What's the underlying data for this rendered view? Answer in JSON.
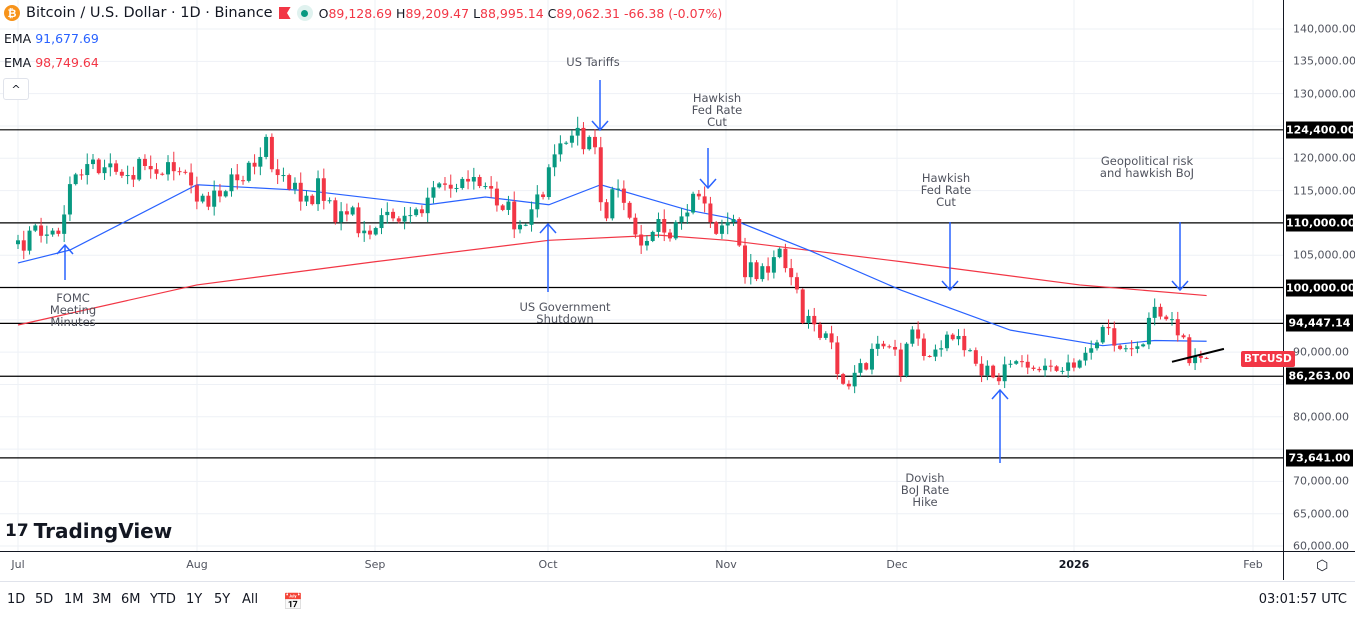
{
  "header": {
    "symbol_icon": "bitcoin-icon",
    "title": "Bitcoin / U.S. Dollar · 1D · Binance",
    "open_label": "O",
    "open": "89,128.69",
    "high_label": "H",
    "high": "89,209.47",
    "low_label": "L",
    "low": "88,995.14",
    "close_label": "C",
    "close": "89,062.31",
    "change": "-66.38 (-0.07%)"
  },
  "indicators": [
    {
      "label": "EMA",
      "value": "91,677.69",
      "color": "#2962ff"
    },
    {
      "label": "EMA",
      "value": "98,749.64",
      "color": "#f23645"
    }
  ],
  "collapse_label": "^",
  "price_axis": {
    "ticks": [
      "140,000.00",
      "135,000.00",
      "130,000.00",
      "120,000.00",
      "115,000.00",
      "105,000.00",
      "90,000.00",
      "80,000.00",
      "70,000.00",
      "65,000.00",
      "60,000.00"
    ],
    "levels": [
      "124,400.00",
      "110,000.00",
      "100,000.00",
      "94,447.14",
      "86,263.00",
      "73,641.00"
    ],
    "symbol_tag": "BTCUSD"
  },
  "time_axis": {
    "labels": [
      "Jul",
      "Aug",
      "Sep",
      "Oct",
      "Nov",
      "Dec",
      "2026",
      "Feb"
    ]
  },
  "annotations": [
    {
      "text": "FOMC\nMeeting\nMinutes"
    },
    {
      "text": "US Tariffs"
    },
    {
      "text": "Hawkish\nFed Rate\nCut"
    },
    {
      "text": "US Government\nShutdown"
    },
    {
      "text": "Hawkish\nFed Rate\nCut"
    },
    {
      "text": "Geopolitical risk\nand hawkish BoJ"
    },
    {
      "text": "Dovish\nBoJ Rate\nHike"
    }
  ],
  "chart_data": {
    "type": "candlestick",
    "start_date": "2025-07-01",
    "closes": [
      107300,
      105700,
      108800,
      109600,
      108000,
      108200,
      108800,
      108300,
      111300,
      116000,
      117500,
      117400,
      119100,
      119800,
      117700,
      118600,
      119200,
      117900,
      117300,
      117400,
      116700,
      119900,
      118800,
      118300,
      117600,
      117500,
      119400,
      118000,
      117900,
      117800,
      115800,
      113300,
      114200,
      112500,
      115000,
      114100,
      114900,
      117500,
      116600,
      116500,
      119300,
      118700,
      120200,
      123300,
      118300,
      117400,
      117400,
      115200,
      116200,
      113300,
      114200,
      112900,
      116900,
      113400,
      113500,
      110100,
      111800,
      111300,
      112400,
      108400,
      108800,
      108200,
      109200,
      111200,
      111700,
      110700,
      110200,
      111100,
      111200,
      112100,
      111500,
      113900,
      115500,
      116100,
      115900,
      115300,
      115400,
      116800,
      116400,
      117100,
      115700,
      115700,
      115300,
      112700,
      112000,
      113300,
      109000,
      109700,
      109700,
      112100,
      114400,
      114000,
      118600,
      120600,
      122300,
      122400,
      123500,
      124700,
      121400,
      123300,
      121700,
      113200,
      110700,
      115200,
      115300,
      113100,
      110800,
      108200,
      106500,
      107200,
      108600,
      110600,
      108500,
      107600,
      110100,
      111000,
      111600,
      114500,
      114100,
      113000,
      110100,
      108300,
      109600,
      110100,
      110600,
      106500,
      101600,
      103900,
      101300,
      103300,
      102300,
      104700,
      106000,
      103000,
      101600,
      99700,
      94500,
      95600,
      94300,
      92200,
      92900,
      91500,
      86600,
      85100,
      84700,
      86800,
      88300,
      87300,
      90500,
      91300,
      90900,
      90800,
      90400,
      86300,
      91300,
      93500,
      92100,
      89400,
      89300,
      90400,
      90600,
      92700,
      92000,
      92500,
      90300,
      90300,
      88200,
      86400,
      87900,
      86100,
      85500,
      88100,
      88200,
      88600,
      88500,
      87600,
      87400,
      87200,
      87900,
      87800,
      87100,
      87100,
      88400,
      87600,
      88700,
      89900,
      90600,
      91500,
      93900,
      93700,
      91000,
      90500,
      90600,
      90500,
      90900,
      91200,
      95300,
      97000,
      95500,
      95100,
      95100,
      92600,
      92300,
      88300,
      89400,
      89100,
      89062
    ],
    "ema_fast": [
      [
        "2025-07-01",
        103800
      ],
      [
        "2025-07-10",
        105800
      ],
      [
        "2025-08-01",
        115900
      ],
      [
        "2025-08-20",
        115000
      ],
      [
        "2025-09-10",
        112800
      ],
      [
        "2025-09-20",
        114000
      ],
      [
        "2025-10-01",
        112800
      ],
      [
        "2025-10-10",
        115900
      ],
      [
        "2025-10-25",
        112000
      ],
      [
        "2025-11-01",
        110800
      ],
      [
        "2025-11-15",
        105800
      ],
      [
        "2025-12-01",
        99600
      ],
      [
        "2025-12-20",
        93400
      ],
      [
        "2026-01-05",
        91000
      ],
      [
        "2026-01-14",
        91800
      ],
      [
        "2026-01-23",
        91677.69
      ]
    ],
    "ema_slow": [
      [
        "2025-07-01",
        94200
      ],
      [
        "2025-08-01",
        100400
      ],
      [
        "2025-09-01",
        104000
      ],
      [
        "2025-10-01",
        107300
      ],
      [
        "2025-10-20",
        108100
      ],
      [
        "2025-11-01",
        107300
      ],
      [
        "2025-12-01",
        104000
      ],
      [
        "2026-01-01",
        100400
      ],
      [
        "2026-01-23",
        98749.64
      ]
    ],
    "levels": [
      124400,
      110000,
      100000,
      94447.14,
      86263,
      73641
    ],
    "trendline": [
      [
        "2026-01-17",
        88500
      ],
      [
        "2026-01-26",
        90500
      ]
    ],
    "ylim": [
      60000,
      142000
    ],
    "up_color": "#089981",
    "down_color": "#f23645"
  },
  "logo": "TradingView",
  "bottom": {
    "ranges": [
      "1D",
      "5D",
      "1M",
      "3M",
      "6M",
      "YTD",
      "1Y",
      "5Y",
      "All"
    ],
    "clock": "03:01:57 UTC"
  }
}
